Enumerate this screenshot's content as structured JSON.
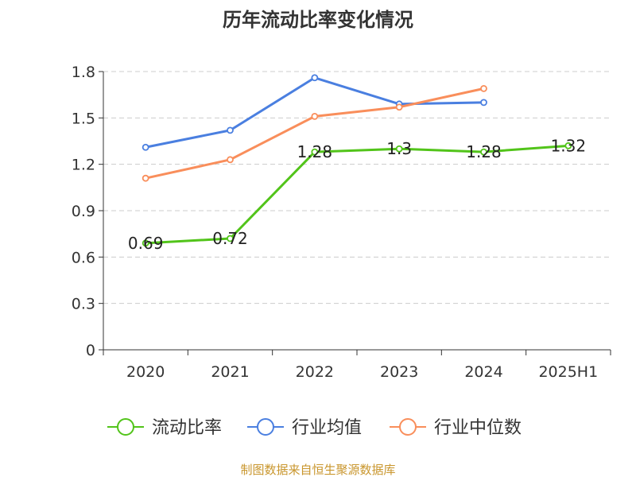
{
  "chart_data": {
    "type": "line",
    "title": "历年流动比率变化情况",
    "categories": [
      "2020",
      "2021",
      "2022",
      "2023",
      "2024",
      "2025H1"
    ],
    "ylim": [
      0,
      1.8
    ],
    "yticks": [
      "0",
      "0.3",
      "0.6",
      "0.9",
      "1.2",
      "1.5",
      "1.8"
    ],
    "grid": true,
    "legend_position": "bottom",
    "series": [
      {
        "name": "流动比率",
        "color": "#52c41a",
        "values": [
          0.69,
          0.72,
          1.28,
          1.3,
          1.28,
          1.32
        ],
        "labels": [
          "0.69",
          "0.72",
          "1.28",
          "1.3",
          "1.28",
          "1.32"
        ]
      },
      {
        "name": "行业均值",
        "color": "#4a7fe0",
        "values": [
          1.31,
          1.42,
          1.76,
          1.59,
          1.6,
          null
        ]
      },
      {
        "name": "行业中位数",
        "color": "#f98e5b",
        "values": [
          1.11,
          1.23,
          1.51,
          1.57,
          1.69,
          null
        ]
      }
    ],
    "source": "制图数据来自恒生聚源数据库"
  }
}
